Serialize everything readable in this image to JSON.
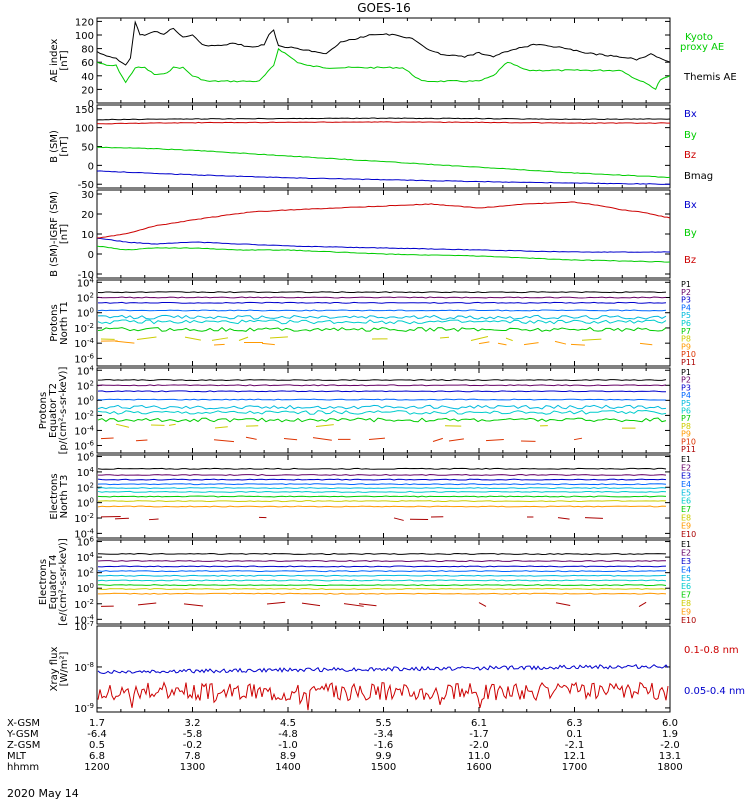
{
  "title": "GOES-16",
  "date_label": "2020 May 14",
  "ephemeris": {
    "rows": [
      {
        "label": "X-GSM",
        "values": [
          "1.7",
          "3.2",
          "4.5",
          "5.5",
          "6.1",
          "6.3",
          "6.0"
        ]
      },
      {
        "label": "Y-GSM",
        "values": [
          "-6.4",
          "-5.8",
          "-4.8",
          "-3.4",
          "-1.7",
          "0.1",
          "1.9"
        ]
      },
      {
        "label": "Z-GSM",
        "values": [
          "0.5",
          "-0.2",
          "-1.0",
          "-1.6",
          "-2.0",
          "-2.1",
          "-2.0"
        ]
      },
      {
        "label": "MLT",
        "values": [
          "6.8",
          "7.8",
          "8.9",
          "9.9",
          "11.0",
          "12.1",
          "13.1"
        ]
      },
      {
        "label": "hhmm",
        "values": [
          "1200",
          "1300",
          "1400",
          "1500",
          "1600",
          "1700",
          "1800"
        ]
      }
    ]
  },
  "chart_data": [
    {
      "type": "line",
      "id": "ae",
      "ylabel": [
        "AE index",
        "[nT]"
      ],
      "yticks": [
        "120",
        "100",
        "80",
        "60",
        "40",
        "20",
        "0"
      ],
      "ylim": [
        0,
        125
      ],
      "series": [
        {
          "name": "Kyoto proxy AE",
          "color": "#00cc00",
          "x": [
            12.0,
            12.1,
            12.2,
            12.3,
            12.4,
            12.5,
            12.6,
            12.7,
            12.8,
            12.9,
            13.0,
            13.15,
            13.3,
            13.5,
            13.7,
            13.85,
            13.9,
            14.0,
            14.1,
            14.2,
            14.4,
            14.6,
            14.8,
            15.0,
            15.2,
            15.4,
            15.6,
            15.8,
            16.0,
            16.15,
            16.3,
            16.5,
            16.7,
            16.9,
            17.0,
            17.3,
            17.5,
            17.6,
            17.75,
            17.85,
            17.9,
            18.0
          ],
          "values": [
            60,
            55,
            55,
            30,
            52,
            52,
            42,
            42,
            52,
            52,
            40,
            32,
            32,
            32,
            32,
            55,
            80,
            70,
            60,
            55,
            52,
            52,
            52,
            52,
            52,
            32,
            32,
            32,
            32,
            40,
            60,
            48,
            48,
            48,
            48,
            48,
            48,
            38,
            30,
            20,
            35,
            40
          ]
        },
        {
          "name": "Themis AE",
          "color": "#000000",
          "x": [
            12.0,
            12.1,
            12.2,
            12.3,
            12.35,
            12.4,
            12.45,
            12.5,
            12.6,
            12.7,
            12.8,
            12.9,
            13.0,
            13.1,
            13.2,
            13.3,
            13.45,
            13.6,
            13.75,
            13.8,
            13.85,
            13.9,
            14.0,
            14.1,
            14.25,
            14.4,
            14.55,
            14.7,
            14.85,
            15.0,
            15.15,
            15.3,
            15.45,
            15.6,
            15.75,
            15.85,
            16.0,
            16.15,
            16.3,
            16.45,
            16.6,
            16.75,
            16.9,
            17.05,
            17.2,
            17.35,
            17.5,
            17.65,
            17.8,
            17.95,
            18.0
          ],
          "values": [
            75,
            70,
            65,
            55,
            65,
            120,
            100,
            100,
            105,
            102,
            110,
            96,
            100,
            86,
            84,
            84,
            88,
            82,
            86,
            100,
            108,
            84,
            82,
            80,
            76,
            72,
            90,
            94,
            100,
            101,
            100,
            94,
            80,
            72,
            70,
            68,
            74,
            68,
            76,
            82,
            86,
            84,
            80,
            76,
            72,
            70,
            68,
            64,
            72,
            62,
            60
          ]
        }
      ]
    },
    {
      "type": "line",
      "id": "bsm",
      "ylabel": [
        "B (SM)",
        "[nT]"
      ],
      "yticks": [
        "150",
        "100",
        "50",
        "0",
        "-50"
      ],
      "ylim": [
        -60,
        160
      ],
      "series": [
        {
          "name": "Bx",
          "color": "#0000cc",
          "x": [
            12.0,
            12.5,
            13.0,
            14.0,
            15.0,
            16.0,
            17.0,
            18.0
          ],
          "values": [
            -15,
            -20,
            -25,
            -33,
            -38,
            -43,
            -47,
            -50
          ]
        },
        {
          "name": "By",
          "color": "#00cc00",
          "x": [
            12.0,
            12.5,
            13.0,
            14.0,
            15.0,
            16.0,
            17.0,
            18.0
          ],
          "values": [
            48,
            45,
            40,
            25,
            10,
            -5,
            -20,
            -32
          ]
        },
        {
          "name": "Bz",
          "color": "#cc0000",
          "x": [
            12.0,
            12.5,
            13.0,
            14.0,
            15.0,
            16.0,
            17.0,
            18.0
          ],
          "values": [
            110,
            112,
            113,
            114,
            115,
            114,
            112,
            112
          ]
        },
        {
          "name": "Bmag",
          "color": "#000000",
          "x": [
            12.0,
            12.5,
            13.0,
            14.0,
            15.0,
            16.0,
            17.0,
            18.0
          ],
          "values": [
            121,
            122,
            123,
            124,
            125,
            124,
            122,
            123
          ]
        }
      ]
    },
    {
      "type": "line",
      "id": "bigrf",
      "ylabel": [
        "B (SM)-IGRF (SM)",
        "[nT]"
      ],
      "yticks": [
        "30",
        "20",
        "10",
        "0",
        "-10"
      ],
      "ylim": [
        -12,
        32
      ],
      "series": [
        {
          "name": "Bx",
          "color": "#0000cc",
          "x": [
            12.0,
            12.3,
            12.6,
            13.0,
            13.5,
            14.0,
            15.0,
            16.0,
            17.0,
            18.0
          ],
          "values": [
            8,
            6,
            5,
            6,
            5,
            4,
            3,
            2,
            1,
            1
          ]
        },
        {
          "name": "By",
          "color": "#00cc00",
          "x": [
            12.0,
            12.3,
            12.6,
            13.0,
            13.5,
            14.0,
            15.0,
            16.0,
            17.0,
            18.0
          ],
          "values": [
            4,
            2,
            3,
            3,
            2,
            2,
            0,
            -1,
            -3,
            -4
          ]
        },
        {
          "name": "Bz",
          "color": "#cc0000",
          "x": [
            12.0,
            12.3,
            12.6,
            13.0,
            13.3,
            13.6,
            14.0,
            14.5,
            15.0,
            15.5,
            16.0,
            16.5,
            17.0,
            17.3,
            17.5,
            17.7,
            18.0
          ],
          "values": [
            8,
            10,
            14,
            17,
            19,
            21,
            22,
            23,
            24,
            25,
            23,
            25,
            26,
            24,
            22,
            21,
            18
          ]
        }
      ]
    },
    {
      "type": "line",
      "id": "pnorth",
      "ylabel": [
        "Protons",
        "North T1"
      ],
      "yticks": [
        "10^4",
        "10^2",
        "10^0",
        "10^-2",
        "10^-4",
        "10^-6"
      ],
      "ylim_exp": [
        -7,
        4.3
      ],
      "series": [
        {
          "name": "P1",
          "color": "#000000",
          "values_exp": [
            2.7,
            2.7
          ]
        },
        {
          "name": "P2",
          "color": "#660066",
          "values_exp": [
            2.0,
            2.0
          ]
        },
        {
          "name": "P3",
          "color": "#0000cc",
          "values_exp": [
            1.3,
            1.3
          ]
        },
        {
          "name": "P4",
          "color": "#0066ff",
          "values_exp": [
            0.3,
            0.3
          ]
        },
        {
          "name": "P5",
          "color": "#00bbdd",
          "values_exp": [
            -0.6,
            -0.6
          ]
        },
        {
          "name": "P6",
          "color": "#00cccc",
          "values_exp": [
            -1.2,
            -1.2
          ]
        },
        {
          "name": "P7",
          "color": "#00cc00",
          "values_exp": [
            -2.2,
            -2.2
          ]
        },
        {
          "name": "P8",
          "color": "#cccc00",
          "values_exp": [
            -3.4,
            -3.4
          ]
        },
        {
          "name": "P9",
          "color": "#ff9900",
          "values_exp": [
            -4.0,
            -4.0
          ]
        },
        {
          "name": "P10",
          "color": "#dd3300",
          "values_exp": null
        },
        {
          "name": "P11",
          "color": "#aa0000",
          "values_exp": null
        }
      ]
    },
    {
      "type": "line",
      "id": "peq",
      "ylabel": [
        "Protons",
        "Equator T2",
        "[p/(cm²-s-sr-keV)]"
      ],
      "yticks": [
        "10^4",
        "10^2",
        "10^0",
        "10^-2",
        "10^-4",
        "10^-6"
      ],
      "ylim_exp": [
        -7,
        4.3
      ],
      "series": [
        {
          "name": "P1",
          "color": "#000000",
          "values_exp": [
            2.7,
            2.7
          ]
        },
        {
          "name": "P2",
          "color": "#660066",
          "values_exp": [
            2.0,
            2.0
          ]
        },
        {
          "name": "P3",
          "color": "#0000cc",
          "values_exp": [
            1.2,
            1.2
          ]
        },
        {
          "name": "P4",
          "color": "#0066ff",
          "values_exp": [
            0.1,
            0.1
          ]
        },
        {
          "name": "P5",
          "color": "#00bbdd",
          "values_exp": [
            -0.9,
            -0.9
          ]
        },
        {
          "name": "P6",
          "color": "#00cccc",
          "values_exp": [
            -1.6,
            -1.6
          ]
        },
        {
          "name": "P7",
          "color": "#00cc00",
          "values_exp": [
            -2.6,
            -2.6
          ]
        },
        {
          "name": "P8",
          "color": "#cccc00",
          "values_exp": [
            -3.4,
            -3.4
          ]
        },
        {
          "name": "P9",
          "color": "#ff9900",
          "values_exp": null
        },
        {
          "name": "P10",
          "color": "#dd3300",
          "values_exp": [
            -5.2,
            -5.2
          ]
        },
        {
          "name": "P11",
          "color": "#aa0000",
          "values_exp": null
        }
      ]
    },
    {
      "type": "line",
      "id": "enorth",
      "ylabel": [
        "Electrons",
        "North T3"
      ],
      "yticks": [
        "10^6",
        "10^4",
        "10^2",
        "10^0",
        "10^-2",
        "10^-4"
      ],
      "ylim_exp": [
        -4.6,
        6.2
      ],
      "series": [
        {
          "name": "E1",
          "color": "#000000",
          "values_exp": [
            4.4,
            4.4
          ]
        },
        {
          "name": "E2",
          "color": "#660066",
          "values_exp": [
            3.6,
            3.6
          ]
        },
        {
          "name": "E3",
          "color": "#0000cc",
          "values_exp": [
            3.0,
            3.0
          ]
        },
        {
          "name": "E4",
          "color": "#0066ff",
          "values_exp": [
            2.4,
            2.4
          ]
        },
        {
          "name": "E5",
          "color": "#00bbdd",
          "values_exp": [
            1.9,
            1.9
          ]
        },
        {
          "name": "E6",
          "color": "#00cccc",
          "values_exp": [
            1.4,
            1.4
          ]
        },
        {
          "name": "E7",
          "color": "#00cc00",
          "values_exp": [
            0.8,
            0.8
          ]
        },
        {
          "name": "E8",
          "color": "#cccc00",
          "values_exp": [
            0.2,
            0.2
          ]
        },
        {
          "name": "E9",
          "color": "#ff9900",
          "values_exp": [
            -0.5,
            -0.5
          ]
        },
        {
          "name": "E10",
          "color": "#aa0000",
          "values_exp": [
            -2.1,
            -2.1
          ]
        }
      ]
    },
    {
      "type": "line",
      "id": "eeq",
      "ylabel": [
        "Electrons",
        "Equator T4",
        "[e/(cm²-s-sr-keV)]"
      ],
      "yticks": [
        "10^6",
        "10^4",
        "10^2",
        "10^0",
        "10^-2",
        "10^-4"
      ],
      "ylim_exp": [
        -4.6,
        6.2
      ],
      "series": [
        {
          "name": "E1",
          "color": "#000000",
          "values_exp": [
            4.4,
            4.4
          ]
        },
        {
          "name": "E2",
          "color": "#660066",
          "values_exp": [
            3.5,
            3.5
          ]
        },
        {
          "name": "E3",
          "color": "#0000cc",
          "values_exp": [
            2.8,
            2.8
          ]
        },
        {
          "name": "E4",
          "color": "#0066ff",
          "values_exp": [
            2.2,
            2.2
          ]
        },
        {
          "name": "E5",
          "color": "#00bbdd",
          "values_exp": [
            1.6,
            1.6
          ]
        },
        {
          "name": "E6",
          "color": "#00cccc",
          "values_exp": [
            1.0,
            1.0
          ]
        },
        {
          "name": "E7",
          "color": "#00cc00",
          "values_exp": [
            0.4,
            0.4
          ]
        },
        {
          "name": "E8",
          "color": "#cccc00",
          "values_exp": [
            -0.1,
            -0.1
          ]
        },
        {
          "name": "E9",
          "color": "#ff9900",
          "values_exp": [
            -0.7,
            -0.7
          ]
        },
        {
          "name": "E10",
          "color": "#aa0000",
          "values_exp": [
            -2.1,
            -2.1
          ]
        }
      ]
    },
    {
      "type": "line",
      "id": "xray",
      "ylabel": [
        "Xray flux",
        "[W/m²]"
      ],
      "yticks": [
        "10^-7",
        "10^-8",
        "10^-9"
      ],
      "ylim_exp": [
        -9.1,
        -7
      ],
      "series": [
        {
          "name": "0.1-0.8 nm",
          "color": "#cc0000",
          "values_exp": [
            -8.6,
            -8.6
          ]
        },
        {
          "name": "0.05-0.4 nm",
          "color": "#0000cc",
          "values_exp": [
            -8.12,
            -7.98
          ]
        }
      ]
    }
  ]
}
